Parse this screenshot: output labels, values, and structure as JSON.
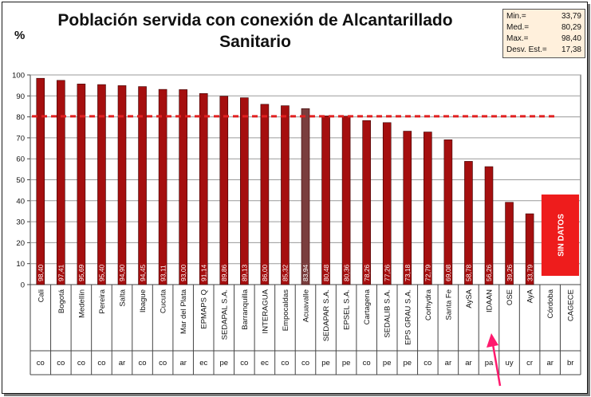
{
  "chart_data": {
    "type": "bar",
    "title_line1": "Población servida con conexión de Alcantarillado",
    "title_line2": "Sanitario",
    "ylabel": "%",
    "ylim": [
      0,
      100
    ],
    "yticks": [
      0,
      10,
      20,
      30,
      40,
      50,
      60,
      70,
      80,
      90,
      100
    ],
    "mean_line": 80.29,
    "categories": [
      "Cali",
      "Bogotá",
      "Medellín",
      "Pereira",
      "Salta",
      "Ibague",
      "Cucuta",
      "Mar del Plata",
      "EPMAPS Q",
      "SEDAPAL S.A.",
      "Barranquilla",
      "INTERAGUA",
      "Empocaldas",
      "Acuavalle",
      "SEDAPAR S.A.",
      "EPSEL S.A.",
      "Cartagena",
      "SEDALIB S.A.",
      "EPS GRAU S.A.",
      "Corhydra",
      "Santa Fe",
      "AySA",
      "IDAAN",
      "OSE",
      "AyA",
      "Córdoba",
      "CAGECE"
    ],
    "countries": [
      "co",
      "co",
      "co",
      "co",
      "ar",
      "co",
      "co",
      "ar",
      "ec",
      "pe",
      "co",
      "ec",
      "co",
      "co",
      "pe",
      "pe",
      "co",
      "pe",
      "pe",
      "co",
      "ar",
      "ar",
      "pa",
      "uy",
      "cr",
      "ar",
      "br"
    ],
    "values": [
      98.4,
      97.41,
      95.69,
      95.4,
      94.9,
      94.45,
      93.11,
      93.0,
      91.14,
      89.86,
      89.13,
      86.0,
      85.32,
      83.94,
      80.48,
      80.36,
      78.26,
      77.26,
      73.18,
      72.79,
      69.08,
      58.78,
      56.26,
      39.26,
      33.79,
      null,
      null
    ],
    "value_labels": [
      "98,40",
      "97,41",
      "95,69",
      "95,40",
      "94,90",
      "94,45",
      "93,11",
      "93,00",
      "91,14",
      "89,86",
      "89,13",
      "86,00",
      "85,32",
      "83,94",
      "80,48",
      "80,36",
      "78,26",
      "77,26",
      "73,18",
      "72,79",
      "69,08",
      "58,78",
      "56,26",
      "39,26",
      "33,79",
      "",
      ""
    ],
    "highlighted_category": "Acuavalle",
    "no_data_label": "SIN DATOS",
    "stats": [
      {
        "label": "Min.=",
        "value": "33,79"
      },
      {
        "label": "Med.=",
        "value": "80,29"
      },
      {
        "label": "Max.=",
        "value": "98,40"
      },
      {
        "label": "Desv. Est.=",
        "value": "17,38"
      }
    ]
  },
  "colors": {
    "bar": "#a50f0f",
    "bar_highlight": "#7a3e3e",
    "mean_line": "#e02020",
    "no_data_box": "#ee1c1c",
    "arrow": "#ff1a6e",
    "stats_bg": "#fff0dc"
  }
}
